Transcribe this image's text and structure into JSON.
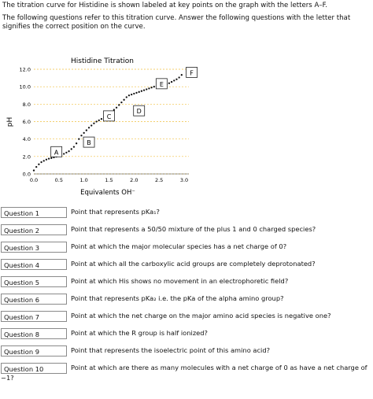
{
  "intro": {
    "line1": "The titration curve for Histidine is shown labeled at key points on the graph with the letters A–F.",
    "line2": "The following questions refer to this titration curve.  Answer the following questions with the letter that signifies the correct position on the curve."
  },
  "chart_data": {
    "type": "scatter",
    "title": "Histidine Titration",
    "xlabel": "Equivalents OH⁻",
    "ylabel": "pH",
    "xlim": [
      0,
      3.0
    ],
    "ylim": [
      0,
      12.0
    ],
    "xticks": [
      "0.0",
      "0.5",
      "1.0",
      "1.5",
      "2.0",
      "2.5",
      "3.0"
    ],
    "xtick_values": [
      0,
      0.5,
      1.0,
      1.5,
      2.0,
      2.5,
      3.0
    ],
    "yticks": [
      "0.0",
      "2.0",
      "4.0",
      "6.0",
      "8.0",
      "10.0",
      "12.0"
    ],
    "ytick_values": [
      0,
      2,
      4,
      6,
      8,
      10,
      12
    ],
    "grid": "horizontal-dashed",
    "x": [
      0.0,
      0.05,
      0.1,
      0.15,
      0.2,
      0.25,
      0.3,
      0.35,
      0.4,
      0.45,
      0.5,
      0.55,
      0.6,
      0.65,
      0.7,
      0.75,
      0.8,
      0.85,
      0.9,
      0.95,
      1.0,
      1.05,
      1.1,
      1.15,
      1.2,
      1.25,
      1.3,
      1.35,
      1.4,
      1.45,
      1.5,
      1.55,
      1.6,
      1.65,
      1.7,
      1.75,
      1.8,
      1.85,
      1.9,
      1.95,
      2.0,
      2.05,
      2.1,
      2.15,
      2.2,
      2.25,
      2.3,
      2.35,
      2.4,
      2.45,
      2.5,
      2.55,
      2.6,
      2.65,
      2.7,
      2.75,
      2.8,
      2.85,
      2.9,
      2.95
    ],
    "y": [
      0.4,
      0.8,
      1.1,
      1.35,
      1.5,
      1.65,
      1.75,
      1.82,
      1.9,
      1.98,
      2.05,
      2.15,
      2.3,
      2.45,
      2.6,
      2.85,
      3.1,
      3.5,
      4.0,
      4.4,
      4.7,
      5.0,
      5.3,
      5.55,
      5.8,
      6.0,
      6.15,
      6.3,
      6.5,
      6.7,
      6.9,
      7.1,
      7.35,
      7.6,
      7.9,
      8.2,
      8.5,
      8.8,
      9.0,
      9.1,
      9.2,
      9.3,
      9.4,
      9.5,
      9.6,
      9.7,
      9.8,
      9.9,
      10.0,
      10.05,
      10.1,
      10.15,
      10.25,
      10.3,
      10.4,
      10.55,
      10.7,
      10.85,
      11.05,
      11.35
    ],
    "labels": [
      {
        "text": "A",
        "x": 0.45,
        "y": 2.5
      },
      {
        "text": "B",
        "x": 1.1,
        "y": 3.6
      },
      {
        "text": "C",
        "x": 1.5,
        "y": 6.6
      },
      {
        "text": "D",
        "x": 2.1,
        "y": 7.2
      },
      {
        "text": "E",
        "x": 2.55,
        "y": 10.3
      },
      {
        "text": "F",
        "x": 3.15,
        "y": 11.6
      }
    ]
  },
  "questions": [
    {
      "label": "Question 1",
      "text": "Point that represents pKa₁?"
    },
    {
      "label": "Question 2",
      "text": "Point that represents a 50/50 mixture of the plus 1 and 0 charged species?"
    },
    {
      "label": "Question 3",
      "text": "Point at which the major molecular species has a net charge of 0?"
    },
    {
      "label": "Question 4",
      "text": "Point at which all the carboxylic acid groups are completely deprotonated?"
    },
    {
      "label": "Question 5",
      "text": "Point at which His shows no movement in an electrophoretic field?"
    },
    {
      "label": "Question 6",
      "text": "Point that represents pKa₂ i.e. the pKa of the alpha amino group?"
    },
    {
      "label": "Question 7",
      "text": "Point at which the net charge on the major amino acid species is negative one?"
    },
    {
      "label": "Question 8",
      "text": "Point at which the R group is half ionized?"
    },
    {
      "label": "Question 9",
      "text": "Point that represents the isoelectric point of this amino acid?"
    },
    {
      "label": "Question 10",
      "text": "Point at which are there as many molecules with a net charge of 0 as have a net charge of",
      "wrap": "−1?"
    }
  ]
}
